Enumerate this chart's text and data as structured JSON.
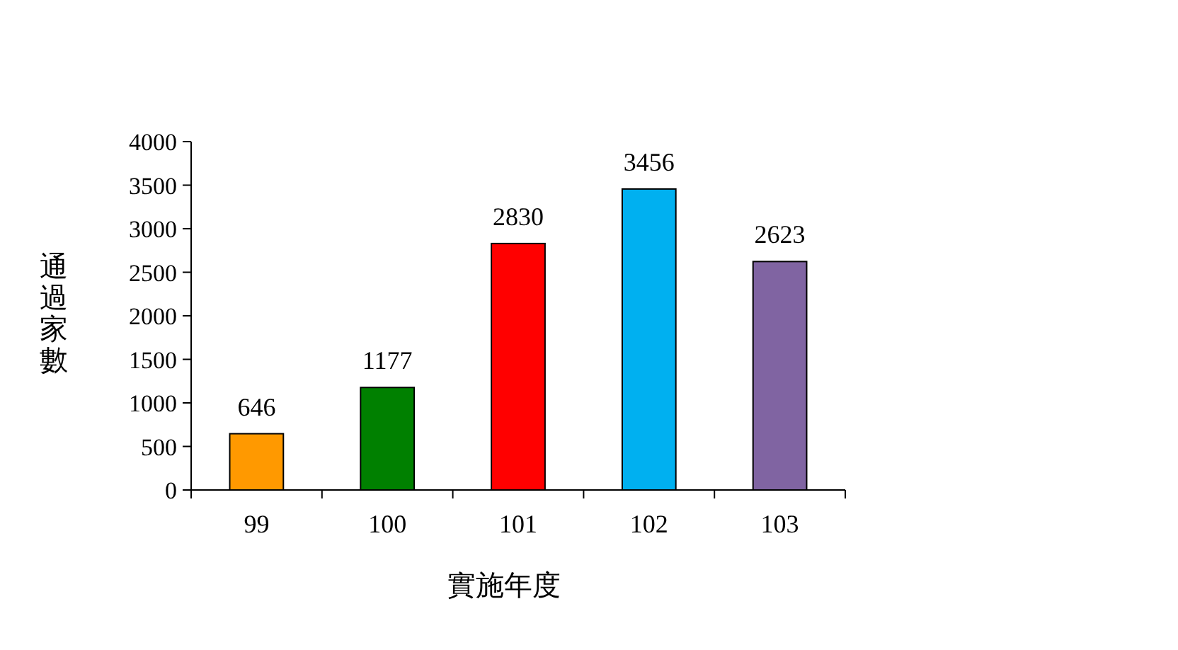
{
  "chart_data": {
    "type": "bar",
    "xlabel": "實施年度",
    "ylabel": "通過家數",
    "categories": [
      "99",
      "100",
      "101",
      "102",
      "103"
    ],
    "values": [
      646,
      1177,
      2830,
      3456,
      2623
    ],
    "colors": [
      "#ff9900",
      "#008000",
      "#ff0000",
      "#00b0f0",
      "#8064a2"
    ],
    "ylim": [
      0,
      4000
    ],
    "yticks": [
      0,
      500,
      1000,
      1500,
      2000,
      2500,
      3000,
      3500,
      4000
    ],
    "data_labels": true
  }
}
